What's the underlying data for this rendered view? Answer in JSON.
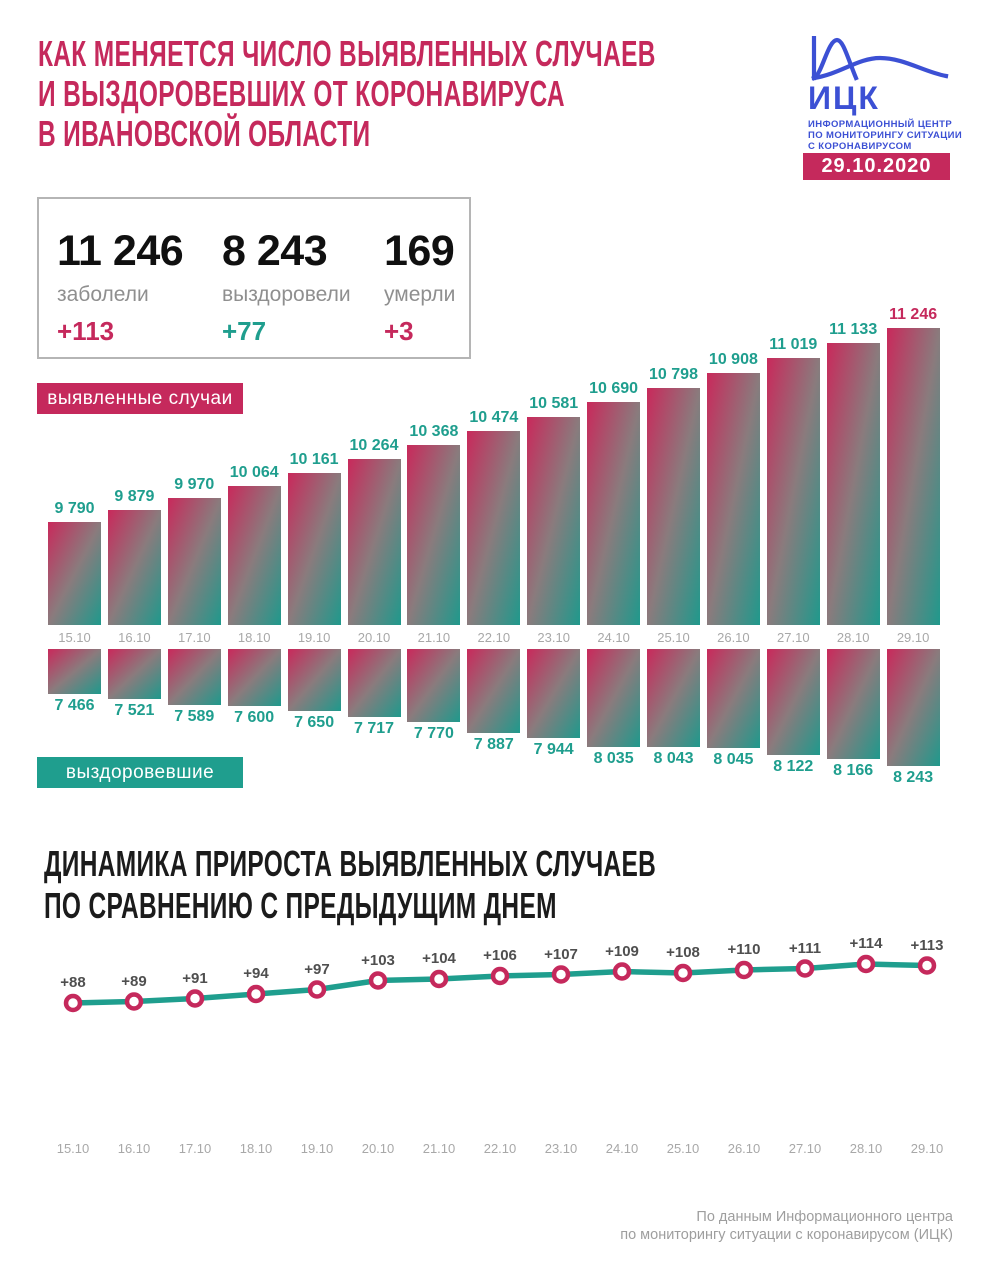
{
  "colors": {
    "crimson": "#c5295c",
    "teal": "#1f9e8e",
    "blue": "#3c50d4",
    "ink": "#1b1b1b",
    "gray-label": "#8f8f8f",
    "gray-date": "#a8a8a8",
    "gray-footer": "#9e9e9e",
    "line-label": "#4f4f4f",
    "border": "#b5b5b5"
  },
  "header": {
    "title_lines": [
      "КАК МЕНЯЕТСЯ ЧИСЛО ВЫЯВЛЕННЫХ СЛУЧАЕВ",
      "И ВЫЗДОРОВЕВШИХ ОТ КОРОНАВИРУСА",
      "В ИВАНОВСКОЙ ОБЛАСТИ"
    ],
    "logo": {
      "abbr": "ИЦК",
      "org_lines": [
        "ИНФОРМАЦИОННЫЙ ЦЕНТР",
        "ПО МОНИТОРИНГУ СИТУАЦИИ",
        "С КОРОНАВИРУСОМ"
      ],
      "date": "29.10.2020"
    }
  },
  "stats": [
    {
      "value": "11 246",
      "label": "заболели",
      "delta": "+113",
      "delta_color": "crimson"
    },
    {
      "value": "8 243",
      "label": "выздоровели",
      "delta": "+77",
      "delta_color": "teal"
    },
    {
      "value": "169",
      "label": "умерли",
      "delta": "+3",
      "delta_color": "crimson"
    }
  ],
  "badges": {
    "cases": "выявленные случаи",
    "recovered": "выздоровевшие"
  },
  "section2": {
    "title_lines": [
      "ДИНАМИКА ПРИРОСТА ВЫЯВЛЕННЫХ СЛУЧАЕВ",
      "ПО СРАВНЕНИЮ С ПРЕДЫДУЩИМ ДНЕМ"
    ]
  },
  "footer_lines": [
    "По данным Информационного центра",
    "по мониторингу ситуации с коронавирусом (ИЦК)"
  ],
  "chart_data": [
    {
      "type": "bar",
      "name": "confirmed_cases",
      "title": "выявленные случаи",
      "orientation": "up",
      "categories": [
        "15.10",
        "16.10",
        "17.10",
        "18.10",
        "19.10",
        "20.10",
        "21.10",
        "22.10",
        "23.10",
        "24.10",
        "25.10",
        "26.10",
        "27.10",
        "28.10",
        "29.10"
      ],
      "values": [
        9790,
        9879,
        9970,
        10064,
        10161,
        10264,
        10368,
        10474,
        10581,
        10690,
        10798,
        10908,
        11019,
        11133,
        11246
      ],
      "labels": [
        "9 790",
        "9 879",
        "9 970",
        "10 064",
        "10 161",
        "10 264",
        "10 368",
        "10 474",
        "10 581",
        "10 690",
        "10 798",
        "10 908",
        "11 019",
        "11 133",
        "11 246"
      ],
      "highlight_last": true,
      "bar_gradient": [
        "#c9295b",
        "#1f998c"
      ],
      "value_label_color": "#1f9e8e",
      "highlight_color": "#c5295c"
    },
    {
      "type": "bar",
      "name": "recovered",
      "title": "выздоровевшие",
      "orientation": "down",
      "categories": [
        "15.10",
        "16.10",
        "17.10",
        "18.10",
        "19.10",
        "20.10",
        "21.10",
        "22.10",
        "23.10",
        "24.10",
        "25.10",
        "26.10",
        "27.10",
        "28.10",
        "29.10"
      ],
      "values": [
        7466,
        7521,
        7589,
        7600,
        7650,
        7717,
        7770,
        7887,
        7944,
        8035,
        8043,
        8045,
        8122,
        8166,
        8243
      ],
      "labels": [
        "7 466",
        "7 521",
        "7 589",
        "7 600",
        "7 650",
        "7 717",
        "7 770",
        "7 887",
        "7 944",
        "8 035",
        "8 043",
        "8 045",
        "8 122",
        "8 166",
        "8 243"
      ],
      "highlight_last": false,
      "bar_gradient": [
        "#c9295b",
        "#1f998c"
      ],
      "value_label_color": "#1f9e8e"
    },
    {
      "type": "line",
      "name": "daily_increase",
      "title": "ДИНАМИКА ПРИРОСТА ВЫЯВЛЕННЫХ СЛУЧАЕВ ПО СРАВНЕНИЮ С ПРЕДЫДУЩИМ ДНЕМ",
      "x": [
        "15.10",
        "16.10",
        "17.10",
        "18.10",
        "19.10",
        "20.10",
        "21.10",
        "22.10",
        "23.10",
        "24.10",
        "25.10",
        "26.10",
        "27.10",
        "28.10",
        "29.10"
      ],
      "values": [
        88,
        89,
        91,
        94,
        97,
        103,
        104,
        106,
        107,
        109,
        108,
        110,
        111,
        114,
        113
      ],
      "labels": [
        "+88",
        "+89",
        "+91",
        "+94",
        "+97",
        "+103",
        "+104",
        "+106",
        "+107",
        "+109",
        "+108",
        "+110",
        "+111",
        "+114",
        "+113"
      ],
      "line_color": "#1f9e8e",
      "marker_ring_color": "#c5295c",
      "marker_fill": "#ffffff",
      "ylim": [
        80,
        120
      ],
      "grid": false,
      "legend": "none"
    }
  ]
}
